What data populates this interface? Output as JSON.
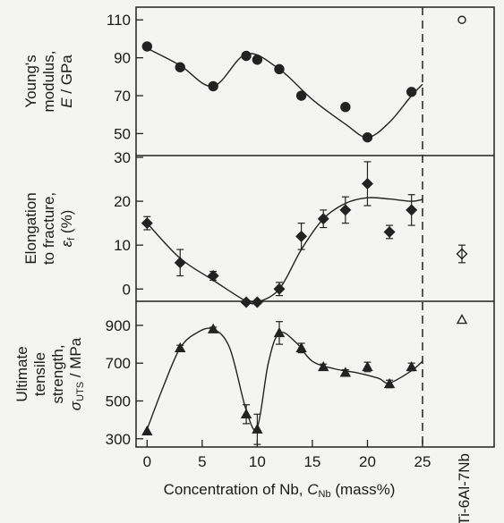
{
  "chart_data": {
    "type": "scatter",
    "x_axis": {
      "label_main": "Concentration of Nb, ",
      "label_symbol": "C",
      "label_sub": "Nb",
      "label_unit": " (mass%)",
      "range": [
        -1,
        25
      ],
      "ticks": [
        0,
        5,
        10,
        15,
        20,
        25
      ],
      "reference_line_x": 25
    },
    "reference_label": "Ti-6Al-7Nb",
    "panels": [
      {
        "id": "youngs-modulus",
        "ylabel_lines": [
          "Young's",
          "modulus,"
        ],
        "ylabel_symbol": "E",
        "ylabel_unit": " / GPa",
        "ylim": [
          45,
          112
        ],
        "yticks": [
          50,
          70,
          90,
          110
        ],
        "marker": "circle",
        "points": [
          {
            "x": 0,
            "y": 96
          },
          {
            "x": 3,
            "y": 85
          },
          {
            "x": 6,
            "y": 75
          },
          {
            "x": 9,
            "y": 91
          },
          {
            "x": 10,
            "y": 89
          },
          {
            "x": 12,
            "y": 84
          },
          {
            "x": 14,
            "y": 70
          },
          {
            "x": 18,
            "y": 64
          },
          {
            "x": 20,
            "y": 48
          },
          {
            "x": 24,
            "y": 72
          }
        ],
        "fit": [
          [
            0,
            95
          ],
          [
            3,
            86
          ],
          [
            6,
            75
          ],
          [
            9,
            92
          ],
          [
            12,
            84
          ],
          [
            15,
            68
          ],
          [
            18,
            55
          ],
          [
            20,
            48
          ],
          [
            22,
            56
          ],
          [
            24,
            70
          ],
          [
            25,
            76
          ]
        ],
        "reference": {
          "y": 110,
          "open": true
        }
      },
      {
        "id": "elongation",
        "ylabel_lines": [
          "Elongation",
          "to fracture,"
        ],
        "ylabel_symbol": "ε",
        "ylabel_sub": "f",
        "ylabel_unit": " (%)",
        "ylim": [
          -3,
          30
        ],
        "yticks": [
          0,
          10,
          20,
          30
        ],
        "marker": "diamond",
        "points": [
          {
            "x": 0,
            "y": 15,
            "err": 1.5
          },
          {
            "x": 3,
            "y": 6,
            "err": 3
          },
          {
            "x": 6,
            "y": 3,
            "err": 1
          },
          {
            "x": 9,
            "y": -3,
            "err": 0
          },
          {
            "x": 10,
            "y": -3,
            "err": 0
          },
          {
            "x": 12,
            "y": 0,
            "err": 1.5
          },
          {
            "x": 14,
            "y": 12,
            "err": 3
          },
          {
            "x": 16,
            "y": 16,
            "err": 2
          },
          {
            "x": 18,
            "y": 18,
            "err": 3
          },
          {
            "x": 20,
            "y": 24,
            "err": 5
          },
          {
            "x": 22,
            "y": 13,
            "err": 1.5
          },
          {
            "x": 24,
            "y": 18,
            "err": 3.5
          }
        ],
        "fit": [
          [
            0,
            15
          ],
          [
            3,
            7
          ],
          [
            6,
            2
          ],
          [
            9,
            -2.8
          ],
          [
            10,
            -3
          ],
          [
            12,
            0
          ],
          [
            14,
            9
          ],
          [
            16,
            16
          ],
          [
            18,
            19.5
          ],
          [
            20,
            20.8
          ],
          [
            22,
            20.5
          ],
          [
            24,
            20
          ],
          [
            25,
            20.4
          ]
        ],
        "reference": {
          "y": 8,
          "err": 2,
          "open": true
        }
      },
      {
        "id": "uts",
        "ylabel_lines": [
          "Ultimate",
          "tensile",
          "strength,"
        ],
        "ylabel_symbol": "σ",
        "ylabel_sub": "UTS",
        "ylabel_unit": " / MPa",
        "ylim": [
          280,
          980
        ],
        "yticks": [
          300,
          500,
          700,
          900
        ],
        "marker": "triangle",
        "points": [
          {
            "x": 0,
            "y": 340,
            "err": 0
          },
          {
            "x": 3,
            "y": 780,
            "err": 15
          },
          {
            "x": 6,
            "y": 880,
            "err": 10
          },
          {
            "x": 9,
            "y": 430,
            "err": 50
          },
          {
            "x": 10,
            "y": 350,
            "err": 80
          },
          {
            "x": 12,
            "y": 860,
            "err": 60
          },
          {
            "x": 14,
            "y": 780,
            "err": 25
          },
          {
            "x": 16,
            "y": 680,
            "err": 15
          },
          {
            "x": 18,
            "y": 650,
            "err": 15
          },
          {
            "x": 20,
            "y": 680,
            "err": 25
          },
          {
            "x": 22,
            "y": 590,
            "err": 20
          },
          {
            "x": 24,
            "y": 680,
            "err": 20
          }
        ],
        "fit": [
          [
            0,
            350
          ],
          [
            1.5,
            580
          ],
          [
            3,
            780
          ],
          [
            4.5,
            860
          ],
          [
            6,
            880
          ],
          [
            7.5,
            780
          ],
          [
            9,
            450
          ],
          [
            10,
            360
          ],
          [
            11,
            700
          ],
          [
            12,
            860
          ],
          [
            13.5,
            810
          ],
          [
            15,
            710
          ],
          [
            17,
            670
          ],
          [
            19,
            650
          ],
          [
            21,
            620
          ],
          [
            22,
            595
          ],
          [
            24,
            660
          ],
          [
            25,
            710
          ]
        ],
        "reference": {
          "y": 930,
          "open": true
        }
      }
    ]
  }
}
